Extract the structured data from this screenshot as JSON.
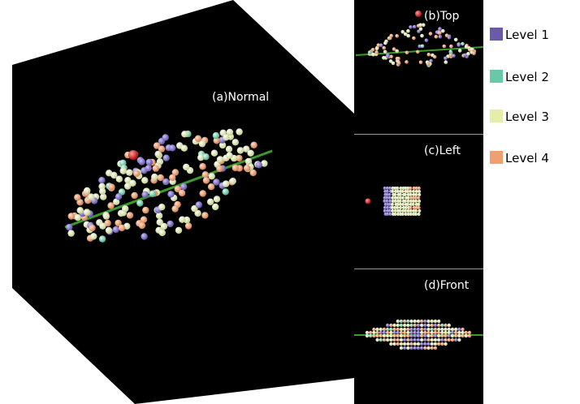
{
  "panels": {
    "normal": "(a)Normal",
    "top": "(b)Top",
    "left": "(c)Left",
    "front": "(d)Front"
  },
  "legend": [
    {
      "label": "Level 1",
      "color": "#6a5aaa"
    },
    {
      "label": "Level 2",
      "color": "#6ac8a8"
    },
    {
      "label": "Level 3",
      "color": "#e4eea8"
    },
    {
      "label": "Level 4",
      "color": "#f0a070"
    }
  ],
  "colors": {
    "background": "#000000",
    "axis_line": "#3a9a2a",
    "marker": "#dd1111",
    "divider": "#aaaaaa"
  }
}
